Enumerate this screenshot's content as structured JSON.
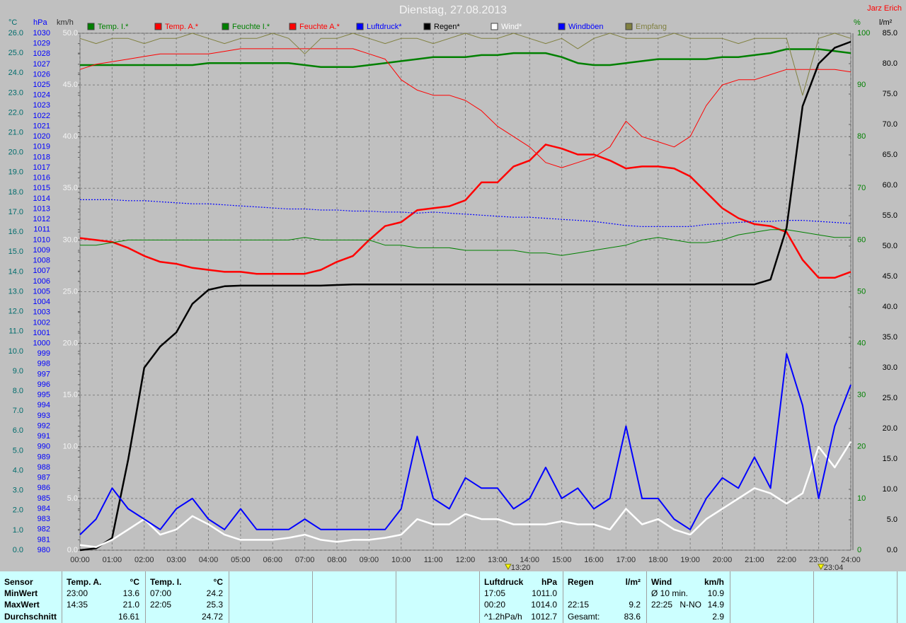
{
  "chart_data": {
    "type": "line",
    "title": "Dienstag, 27.08.2013",
    "author": "Jarz Erich",
    "grid": true,
    "background": "#c0c0c0",
    "x": [
      0,
      0.5,
      1,
      1.5,
      2,
      2.5,
      3,
      3.5,
      4,
      4.5,
      5,
      5.5,
      6,
      6.5,
      7,
      7.5,
      8,
      8.5,
      9,
      9.5,
      10,
      10.5,
      11,
      11.5,
      12,
      12.5,
      13,
      13.5,
      14,
      14.5,
      15,
      15.5,
      16,
      16.5,
      17,
      17.5,
      18,
      18.5,
      19,
      19.5,
      20,
      20.5,
      21,
      21.5,
      22,
      22.5,
      23,
      23.5,
      24
    ],
    "xlim": [
      0,
      24
    ],
    "xticks": [
      {
        "value": 0,
        "label": "00:00"
      },
      {
        "value": 1,
        "label": "01:00"
      },
      {
        "value": 2,
        "label": "02:00"
      },
      {
        "value": 3,
        "label": "03:00"
      },
      {
        "value": 4,
        "label": "04:00"
      },
      {
        "value": 5,
        "label": "05:00"
      },
      {
        "value": 6,
        "label": "06:00"
      },
      {
        "value": 7,
        "label": "07:00"
      },
      {
        "value": 8,
        "label": "08:00"
      },
      {
        "value": 9,
        "label": "09:00"
      },
      {
        "value": 10,
        "label": "10:00"
      },
      {
        "value": 11,
        "label": "11:00"
      },
      {
        "value": 12,
        "label": "12:00"
      },
      {
        "value": 13,
        "label": "13:00"
      },
      {
        "value": 14,
        "label": "14:00"
      },
      {
        "value": 15,
        "label": "15:00"
      },
      {
        "value": 16,
        "label": "16:00"
      },
      {
        "value": 17,
        "label": "17:00"
      },
      {
        "value": 18,
        "label": "18:00"
      },
      {
        "value": 19,
        "label": "19:00"
      },
      {
        "value": 20,
        "label": "20:00"
      },
      {
        "value": 21,
        "label": "21:00"
      },
      {
        "value": 22,
        "label": "22:00"
      },
      {
        "value": 23,
        "label": "23:00"
      },
      {
        "value": 24,
        "label": "24:00"
      }
    ],
    "axes": [
      {
        "id": "temp",
        "label": "°C",
        "color": "#006c6c",
        "side": "left",
        "lim": [
          0,
          26
        ],
        "ticks": [
          {
            "value": 0,
            "label": "0.0"
          },
          {
            "value": 1,
            "label": "1.0"
          },
          {
            "value": 2,
            "label": "2.0"
          },
          {
            "value": 3,
            "label": "3.0"
          },
          {
            "value": 4,
            "label": "4.0"
          },
          {
            "value": 5,
            "label": "5.0"
          },
          {
            "value": 6,
            "label": "6.0"
          },
          {
            "value": 7,
            "label": "7.0"
          },
          {
            "value": 8,
            "label": "8.0"
          },
          {
            "value": 9,
            "label": "9.0"
          },
          {
            "value": 10,
            "label": "10.0"
          },
          {
            "value": 11,
            "label": "11.0"
          },
          {
            "value": 12,
            "label": "12.0"
          },
          {
            "value": 13,
            "label": "13.0"
          },
          {
            "value": 14,
            "label": "14.0"
          },
          {
            "value": 15,
            "label": "15.0"
          },
          {
            "value": 16,
            "label": "16.0"
          },
          {
            "value": 17,
            "label": "17.0"
          },
          {
            "value": 18,
            "label": "18.0"
          },
          {
            "value": 19,
            "label": "19.0"
          },
          {
            "value": 20,
            "label": "20.0"
          },
          {
            "value": 21,
            "label": "21.0"
          },
          {
            "value": 22,
            "label": "22.0"
          },
          {
            "value": 23,
            "label": "23.0"
          },
          {
            "value": 24,
            "label": "24.0"
          },
          {
            "value": 25,
            "label": "25.0"
          },
          {
            "value": 26,
            "label": "26.0"
          }
        ]
      },
      {
        "id": "hpa",
        "label": "hPa",
        "color": "#0000ff",
        "side": "left",
        "lim": [
          980,
          1030
        ],
        "ticks": [
          980,
          981,
          982,
          983,
          984,
          985,
          986,
          987,
          988,
          989,
          990,
          991,
          992,
          993,
          994,
          995,
          996,
          997,
          998,
          999,
          1000,
          1001,
          1002,
          1003,
          1004,
          1005,
          1006,
          1007,
          1008,
          1009,
          1010,
          1011,
          1012,
          1013,
          1014,
          1015,
          1016,
          1017,
          1018,
          1019,
          1020,
          1021,
          1022,
          1023,
          1024,
          1025,
          1026,
          1027,
          1028,
          1029,
          1030
        ]
      },
      {
        "id": "kmh",
        "label": "km/h",
        "color": "#f4f4f4",
        "side": "left",
        "grid": true,
        "lim": [
          0,
          50
        ],
        "ticks": [
          {
            "value": 0,
            "label": "0.0"
          },
          {
            "value": 5,
            "label": "5.0"
          },
          {
            "value": 10,
            "label": "10.0"
          },
          {
            "value": 15,
            "label": "15.0"
          },
          {
            "value": 20,
            "label": "20.0"
          },
          {
            "value": 25,
            "label": "25.0"
          },
          {
            "value": 30,
            "label": "30.0"
          },
          {
            "value": 35,
            "label": "35.0"
          },
          {
            "value": 40,
            "label": "40.0"
          },
          {
            "value": 45,
            "label": "45.0"
          },
          {
            "value": 50,
            "label": "50.0"
          }
        ]
      },
      {
        "id": "pct",
        "label": "%",
        "color": "#008000",
        "side": "right",
        "lim": [
          0,
          100
        ],
        "ticks": [
          0,
          10,
          20,
          30,
          40,
          50,
          60,
          70,
          80,
          90,
          100
        ]
      },
      {
        "id": "rain",
        "label": "l/m²",
        "color": "#000000",
        "side": "right",
        "lim": [
          0,
          85
        ],
        "ticks": [
          {
            "value": 0,
            "label": "0.0"
          },
          {
            "value": 5,
            "label": "5.0"
          },
          {
            "value": 10,
            "label": "10.0"
          },
          {
            "value": 15,
            "label": "15.0"
          },
          {
            "value": 20,
            "label": "20.0"
          },
          {
            "value": 25,
            "label": "25.0"
          },
          {
            "value": 30,
            "label": "30.0"
          },
          {
            "value": 35,
            "label": "35.0"
          },
          {
            "value": 40,
            "label": "40.0"
          },
          {
            "value": 45,
            "label": "45.0"
          },
          {
            "value": 50,
            "label": "50.0"
          },
          {
            "value": 55,
            "label": "55.0"
          },
          {
            "value": 60,
            "label": "60.0"
          },
          {
            "value": 65,
            "label": "65.0"
          },
          {
            "value": 70,
            "label": "70.0"
          },
          {
            "value": 75,
            "label": "75.0"
          },
          {
            "value": 80,
            "label": "80.0"
          },
          {
            "value": 85,
            "label": "85.0"
          }
        ]
      }
    ],
    "series": [
      {
        "name": "Temp. I.*",
        "color": "#008000",
        "axis": "temp",
        "line": "thick",
        "values": [
          24.4,
          24.4,
          24.4,
          24.4,
          24.4,
          24.4,
          24.4,
          24.4,
          24.5,
          24.5,
          24.5,
          24.5,
          24.5,
          24.5,
          24.4,
          24.3,
          24.3,
          24.3,
          24.4,
          24.5,
          24.6,
          24.7,
          24.8,
          24.8,
          24.8,
          24.9,
          24.9,
          25.0,
          25.0,
          25.0,
          24.8,
          24.5,
          24.4,
          24.4,
          24.5,
          24.6,
          24.7,
          24.7,
          24.7,
          24.7,
          24.8,
          24.8,
          24.9,
          25.0,
          25.2,
          25.2,
          25.2,
          25.1,
          25.0
        ]
      },
      {
        "name": "Temp. A.*",
        "color": "#ff0000",
        "axis": "temp",
        "line": "thick",
        "values": [
          15.7,
          15.6,
          15.5,
          15.2,
          14.8,
          14.5,
          14.4,
          14.2,
          14.1,
          14.0,
          14.0,
          13.9,
          13.9,
          13.9,
          13.9,
          14.1,
          14.5,
          14.8,
          15.6,
          16.3,
          16.5,
          17.1,
          17.2,
          17.3,
          17.6,
          18.5,
          18.5,
          19.3,
          19.6,
          20.4,
          20.2,
          19.9,
          19.9,
          19.6,
          19.2,
          19.3,
          19.3,
          19.2,
          18.8,
          18.0,
          17.2,
          16.7,
          16.4,
          16.3,
          16.0,
          14.6,
          13.7,
          13.7,
          14.0
        ]
      },
      {
        "name": "Feuchte I.*",
        "color": "#008000",
        "axis": "pct",
        "line": "thin",
        "values": [
          59,
          59,
          59.5,
          60,
          60,
          60,
          60,
          60,
          60,
          60,
          60,
          60,
          60,
          60,
          60.5,
          60,
          60,
          60,
          60,
          59,
          59,
          58.5,
          58.5,
          58.5,
          58,
          58,
          58,
          58,
          57.5,
          57.5,
          57,
          57.5,
          58,
          58.5,
          59,
          60,
          60.5,
          60,
          59.5,
          59.5,
          60,
          61,
          61.5,
          62,
          62,
          61.5,
          61,
          60.5,
          60.5
        ]
      },
      {
        "name": "Feuchte A.*",
        "color": "#ff0000",
        "axis": "pct",
        "line": "thin",
        "values": [
          93,
          94,
          94.5,
          95,
          95.5,
          96,
          96,
          96,
          96,
          96.5,
          97,
          97,
          97,
          97,
          97,
          97,
          97,
          97,
          96,
          95,
          91,
          89,
          88,
          88,
          87,
          85,
          82,
          80,
          78,
          75,
          74,
          75,
          76,
          78,
          83,
          80,
          79,
          78,
          80,
          86,
          90,
          91,
          91,
          92,
          93,
          93,
          93,
          93,
          92.5
        ]
      },
      {
        "name": "Luftdruck*",
        "color": "#0000ff",
        "axis": "hpa",
        "line": "dotted",
        "values": [
          1013.9,
          1013.9,
          1013.9,
          1013.8,
          1013.8,
          1013.7,
          1013.6,
          1013.5,
          1013.5,
          1013.4,
          1013.3,
          1013.2,
          1013.1,
          1013.0,
          1013.0,
          1012.9,
          1012.9,
          1012.8,
          1012.8,
          1012.7,
          1012.7,
          1012.6,
          1012.7,
          1012.6,
          1012.5,
          1012.4,
          1012.3,
          1012.2,
          1012.2,
          1012.1,
          1012.0,
          1011.9,
          1011.8,
          1011.6,
          1011.4,
          1011.3,
          1011.3,
          1011.3,
          1011.3,
          1011.5,
          1011.6,
          1011.7,
          1011.8,
          1011.8,
          1011.9,
          1011.9,
          1011.8,
          1011.7,
          1011.6
        ]
      },
      {
        "name": "Regen*",
        "color": "#000000",
        "axis": "rain",
        "line": "thick",
        "values": [
          0,
          0.3,
          2,
          14.9,
          30,
          33.5,
          35.8,
          40.5,
          42.8,
          43.4,
          43.5,
          43.5,
          43.5,
          43.5,
          43.5,
          43.5,
          43.6,
          43.7,
          43.7,
          43.7,
          43.7,
          43.7,
          43.7,
          43.7,
          43.7,
          43.7,
          43.7,
          43.7,
          43.7,
          43.7,
          43.7,
          43.7,
          43.7,
          43.7,
          43.7,
          43.7,
          43.7,
          43.7,
          43.7,
          43.7,
          43.7,
          43.7,
          43.7,
          44.5,
          53,
          73,
          80,
          82.6,
          83.6
        ]
      },
      {
        "name": "Wind*",
        "color": "#ffffff",
        "axis": "kmh",
        "line": "thick",
        "values": [
          0.5,
          0.3,
          1,
          2,
          3,
          1.5,
          2,
          3.3,
          2.5,
          1.5,
          1,
          1,
          1,
          1.2,
          1.5,
          1,
          0.8,
          1,
          1,
          1.2,
          1.5,
          3,
          2.5,
          2.5,
          3.5,
          3,
          3,
          2.5,
          2.5,
          2.5,
          2.8,
          2.5,
          2.5,
          2,
          4,
          2.5,
          3,
          2,
          1.5,
          3,
          4,
          5,
          6,
          5.5,
          4.5,
          5.5,
          10,
          8,
          10.5
        ]
      },
      {
        "name": "Windböen",
        "color": "#0000ff",
        "axis": "kmh",
        "line": "thick",
        "values": [
          1.5,
          3,
          6,
          4,
          3,
          2,
          4,
          5,
          3,
          2,
          4,
          2,
          2,
          2,
          3,
          2,
          2,
          2,
          2,
          2,
          4,
          11,
          5,
          4,
          7,
          6,
          6,
          4,
          5,
          8,
          5,
          6,
          4,
          5,
          12,
          5,
          5,
          3,
          2,
          5,
          7,
          6,
          9,
          6,
          19,
          14,
          5,
          12,
          16
        ]
      },
      {
        "name": "Empfang",
        "color": "#808040",
        "axis": "pct",
        "line": "thin",
        "values": [
          99,
          98,
          99,
          99,
          98,
          99,
          99,
          100,
          99,
          98,
          99,
          99,
          100,
          99,
          96,
          99,
          99,
          100,
          99,
          98,
          99,
          99,
          98,
          99,
          100,
          99,
          99,
          100,
          99,
          98,
          99,
          97,
          99,
          100,
          99,
          99,
          99,
          100,
          99,
          99,
          99,
          98,
          99,
          99,
          99,
          88,
          99,
          100,
          99
        ]
      }
    ],
    "markers": [
      {
        "x": 13.33,
        "label": "13:20"
      },
      {
        "x": 23.07,
        "label": "23:04"
      }
    ]
  },
  "table": {
    "columns": [
      {
        "header": "Sensor",
        "rows": [
          "MinWert",
          "MaxWert",
          "Durchschnitt"
        ]
      },
      {
        "header": "Temp. A.",
        "unit": "°C",
        "rows": [
          {
            "time": "23:00",
            "value": "13.6"
          },
          {
            "time": "14:35",
            "value": "21.0"
          },
          {
            "value": "16.61"
          }
        ]
      },
      {
        "header": "Temp. I.",
        "unit": "°C",
        "rows": [
          {
            "time": "07:00",
            "value": "24.2"
          },
          {
            "time": "22:05",
            "value": "25.3"
          },
          {
            "value": "24.72"
          }
        ]
      },
      {
        "header": "Luftdruck",
        "unit": "hPa",
        "rows": [
          {
            "time": "17:05",
            "value": "1011.0"
          },
          {
            "time": "00:20",
            "value": "1014.0"
          },
          {
            "time": "^1.2hPa/h",
            "value": "1012.7"
          }
        ]
      },
      {
        "header": "Regen",
        "unit": "l/m²",
        "rows": [
          {},
          {
            "time": "22:15",
            "value": "9.2"
          },
          {
            "time": "Gesamt:",
            "value": "83.6"
          }
        ]
      },
      {
        "header": "Wind",
        "unit": "km/h",
        "rows": [
          {
            "time": "Ø 10 min.",
            "value": "10.9"
          },
          {
            "time": "22:25",
            "dir": "N-NO",
            "value": "14.9"
          },
          {
            "value": "2.9"
          }
        ]
      }
    ]
  }
}
